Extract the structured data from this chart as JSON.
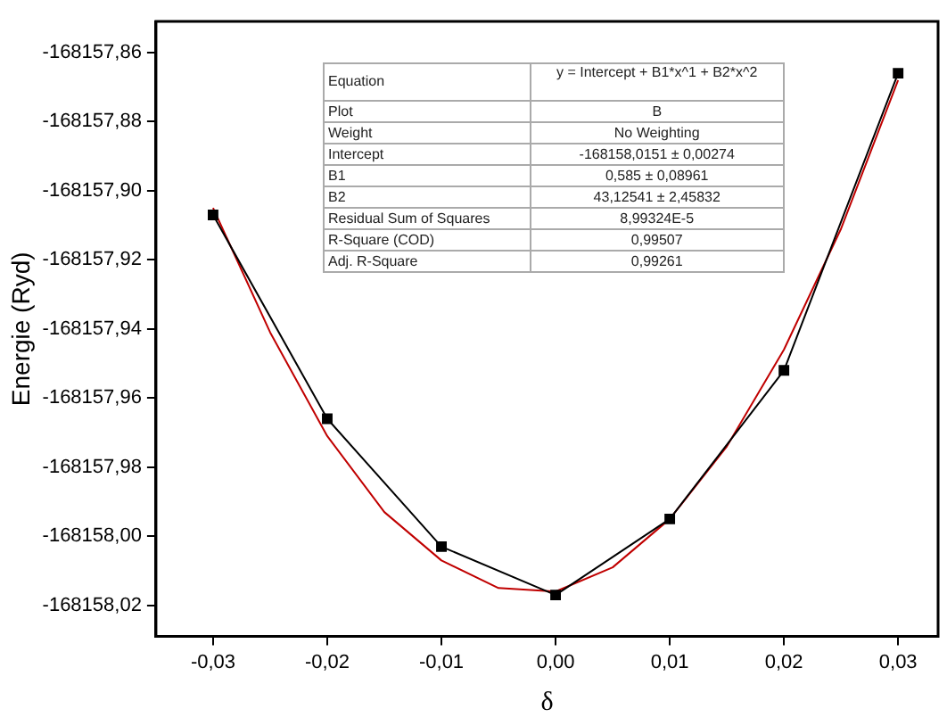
{
  "chart_data": {
    "type": "line",
    "xlabel": "δ",
    "ylabel": "Energie (Ryd)",
    "xlim": [
      -0.035,
      0.0335
    ],
    "xticks": [
      {
        "value": -0.03,
        "label": "-0,03"
      },
      {
        "value": -0.02,
        "label": "-0,02"
      },
      {
        "value": -0.01,
        "label": "-0,01"
      },
      {
        "value": 0,
        "label": "0,00"
      },
      {
        "value": 0.01,
        "label": "0,01"
      },
      {
        "value": 0.02,
        "label": "0,02"
      },
      {
        "value": 0.03,
        "label": "0,03"
      }
    ],
    "ylim": [
      -168158.029,
      -168157.851
    ],
    "yticks": [
      {
        "value": -168158.02,
        "label": "-168158,02"
      },
      {
        "value": -168158,
        "label": "-168158,00"
      },
      {
        "value": -168157.98,
        "label": "-168157,98"
      },
      {
        "value": -168157.96,
        "label": "-168157,96"
      },
      {
        "value": -168157.94,
        "label": "-168157,94"
      },
      {
        "value": -168157.92,
        "label": "-168157,92"
      },
      {
        "value": -168157.9,
        "label": "-168157,90"
      },
      {
        "value": -168157.88,
        "label": "-168157,88"
      },
      {
        "value": -168157.86,
        "label": "-168157,86"
      }
    ],
    "grid": false,
    "legend": false,
    "series": [
      {
        "type": "line",
        "color": "#000000",
        "marker": "square",
        "x": [
          -0.03,
          -0.02,
          -0.01,
          0,
          0.01,
          0.02,
          0.03
        ],
        "values": [
          -168157.907,
          -168157.966,
          -168158.003,
          -168158.017,
          -168157.995,
          -168157.952,
          -168157.866
        ]
      },
      {
        "type": "line",
        "color": "#c00000",
        "marker": "none",
        "x": [
          -0.03,
          -0.025,
          -0.02,
          -0.015,
          -0.01,
          -0.005,
          0,
          0.005,
          0.01,
          0.015,
          0.02,
          0.025,
          0.03
        ],
        "values": [
          -168157.905,
          -168157.941,
          -168157.971,
          -168157.993,
          -168158.007,
          -168158.015,
          -168158.016,
          -168158.009,
          -168157.995,
          -168157.974,
          -168157.946,
          -168157.911,
          -168157.868
        ]
      }
    ],
    "annotations": [
      "Equation",
      "y = Intercept + B1*x^1 + B2*x^2",
      "Plot",
      "B",
      "Weight",
      "No Weighting",
      "Intercept",
      "-168158,0151 ± 0,00274",
      "B1",
      "0,585 ± 0,08961",
      "B2",
      "43,12541 ± 2,45832",
      "Residual Sum of Squares",
      "8,99324E-5",
      "R-Square (COD)",
      "0,99507",
      "Adj. R-Square",
      "0,99261"
    ]
  }
}
